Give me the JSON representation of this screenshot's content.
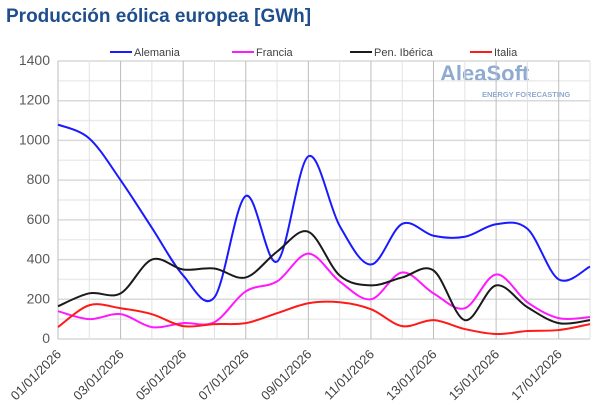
{
  "chart_data": {
    "type": "line",
    "title": "Producción eólica europea [GWh]",
    "xlabel": "",
    "ylabel": "",
    "ylim": [
      0,
      1400
    ],
    "yticks": [
      0,
      200,
      400,
      600,
      800,
      1000,
      1200,
      1400
    ],
    "x": [
      "01/01/2026",
      "02/01/2026",
      "03/01/2026",
      "04/01/2026",
      "05/01/2026",
      "06/01/2026",
      "07/01/2026",
      "08/01/2026",
      "09/01/2026",
      "10/01/2026",
      "11/01/2026",
      "12/01/2026",
      "13/01/2026",
      "14/01/2026",
      "15/01/2026",
      "16/01/2026",
      "17/01/2026",
      "18/01/2026"
    ],
    "xtick_labels": [
      "01/01/2026",
      "03/01/2026",
      "05/01/2026",
      "07/01/2026",
      "09/01/2026",
      "11/01/2026",
      "13/01/2026",
      "15/01/2026",
      "17/01/2026"
    ],
    "legend_position": "top",
    "grid": true,
    "series": [
      {
        "name": "Alemania",
        "color": "#1a1aff",
        "values": [
          1080,
          1010,
          800,
          560,
          320,
          210,
          720,
          390,
          920,
          570,
          375,
          580,
          520,
          515,
          578,
          555,
          300,
          365
        ]
      },
      {
        "name": "Francia",
        "color": "#ff19ff",
        "values": [
          140,
          100,
          125,
          60,
          80,
          85,
          240,
          290,
          430,
          290,
          200,
          335,
          230,
          155,
          325,
          185,
          105,
          110
        ]
      },
      {
        "name": "Pen. Ibérica",
        "color": "#1a1a1a",
        "values": [
          165,
          230,
          230,
          400,
          350,
          355,
          310,
          440,
          540,
          320,
          270,
          310,
          345,
          95,
          270,
          160,
          80,
          95
        ]
      },
      {
        "name": "Italia",
        "color": "#ff1a1a",
        "values": [
          60,
          170,
          155,
          125,
          65,
          75,
          80,
          130,
          180,
          185,
          150,
          65,
          95,
          50,
          25,
          40,
          45,
          75
        ]
      }
    ]
  },
  "watermark": {
    "brand": "AleaSoft",
    "tagline": "ENERGY FORECASTING"
  }
}
